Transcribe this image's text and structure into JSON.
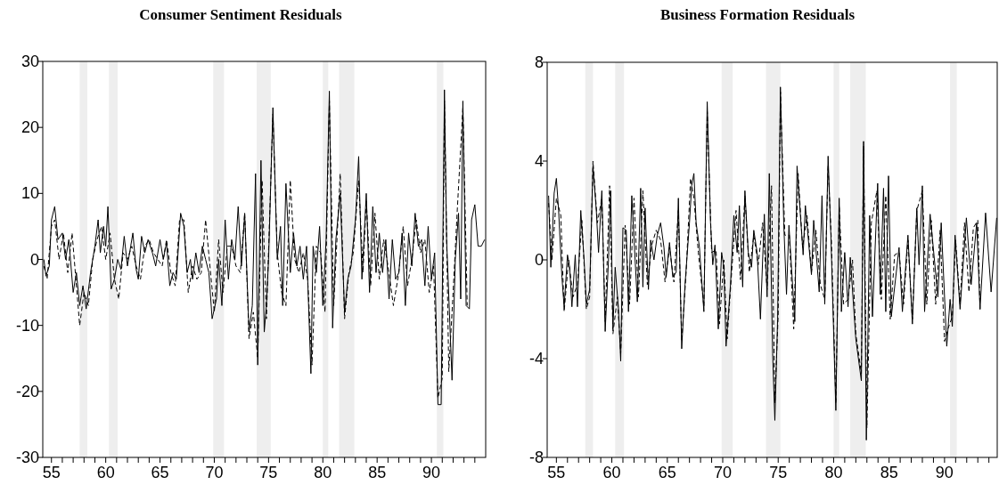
{
  "chart_data": [
    {
      "type": "line",
      "title": "Consumer Sentiment Residuals",
      "xlim": [
        54.2,
        95.0
      ],
      "xticks": [
        55,
        {
          "value": 56,
          "label": null
        },
        {
          "value": 57,
          "label": null
        },
        {
          "value": 58,
          "label": null
        },
        {
          "value": 59,
          "label": null
        },
        60,
        {
          "value": 61,
          "label": null
        },
        {
          "value": 62,
          "label": null
        },
        {
          "value": 63,
          "label": null
        },
        {
          "value": 64,
          "label": null
        },
        65,
        {
          "value": 66,
          "label": null
        },
        {
          "value": 67,
          "label": null
        },
        {
          "value": 68,
          "label": null
        },
        {
          "value": 69,
          "label": null
        },
        70,
        {
          "value": 71,
          "label": null
        },
        {
          "value": 72,
          "label": null
        },
        {
          "value": 73,
          "label": null
        },
        {
          "value": 74,
          "label": null
        },
        75,
        {
          "value": 76,
          "label": null
        },
        {
          "value": 77,
          "label": null
        },
        {
          "value": 78,
          "label": null
        },
        {
          "value": 79,
          "label": null
        },
        80,
        {
          "value": 81,
          "label": null
        },
        {
          "value": 82,
          "label": null
        },
        {
          "value": 83,
          "label": null
        },
        {
          "value": 84,
          "label": null
        },
        85,
        {
          "value": 86,
          "label": null
        },
        {
          "value": 87,
          "label": null
        },
        {
          "value": 88,
          "label": null
        },
        {
          "value": 89,
          "label": null
        },
        90,
        {
          "value": 91,
          "label": null
        },
        {
          "value": 92,
          "label": null
        },
        {
          "value": 93,
          "label": null
        },
        {
          "value": 94,
          "label": null
        }
      ],
      "ylim": [
        -30,
        30
      ],
      "yticks": [
        -30,
        -20,
        -10,
        0,
        10,
        20,
        30
      ],
      "grid": false,
      "bands": [
        {
          "axis": "x",
          "from": 57.6,
          "to": 58.3,
          "color": "#eeeeee"
        },
        {
          "axis": "x",
          "from": 60.3,
          "to": 61.1,
          "color": "#eeeeee"
        },
        {
          "axis": "x",
          "from": 69.9,
          "to": 70.9,
          "color": "#eeeeee"
        },
        {
          "axis": "x",
          "from": 73.9,
          "to": 75.2,
          "color": "#eeeeee"
        },
        {
          "axis": "x",
          "from": 80.0,
          "to": 80.5,
          "color": "#eeeeee"
        },
        {
          "axis": "x",
          "from": 81.5,
          "to": 82.9,
          "color": "#eeeeee"
        },
        {
          "axis": "x",
          "from": 90.5,
          "to": 91.1,
          "color": "#eeeeee"
        }
      ],
      "series": [
        {
          "color": "#000000",
          "line_style": "solid",
          "x": [
            54.3,
            54.5,
            54.8,
            55.0,
            55.3,
            55.6,
            56.0,
            56.3,
            56.6,
            57.0,
            57.3,
            57.6,
            57.9,
            58.2,
            58.6,
            59.0,
            59.3,
            59.5,
            59.8,
            60.0,
            60.2,
            60.5,
            60.8,
            61.1,
            61.4,
            61.7,
            62.0,
            62.3,
            62.5,
            62.8,
            63.0,
            63.3,
            63.6,
            63.9,
            64.3,
            64.6,
            65.0,
            65.3,
            65.6,
            65.9,
            66.2,
            66.5,
            66.9,
            67.2,
            67.5,
            67.8,
            68.0,
            68.3,
            68.6,
            68.9,
            69.2,
            69.5,
            69.8,
            70.2,
            70.4,
            70.7,
            71.0,
            71.3,
            71.6,
            71.9,
            72.2,
            72.5,
            72.8,
            73.2,
            73.5,
            73.8,
            74.0,
            74.3,
            74.6,
            74.8,
            75.0,
            75.4,
            75.8,
            76.1,
            76.3,
            76.6,
            77.0,
            77.3,
            77.6,
            77.9,
            78.2,
            78.5,
            78.9,
            79.1,
            79.4,
            79.7,
            80.0,
            80.3,
            80.6,
            80.9,
            81.2,
            81.6,
            82.0,
            82.3,
            82.6,
            83.0,
            83.3,
            83.6,
            84.0,
            84.3,
            84.6,
            84.9,
            85.2,
            85.5,
            85.8,
            86.1,
            86.4,
            86.7,
            87.0,
            87.3,
            87.6,
            87.9,
            88.2,
            88.5,
            88.8,
            89.1,
            89.4,
            89.7,
            90.0,
            90.3,
            90.6,
            90.9,
            91.2,
            91.4,
            91.9,
            92.2,
            92.5,
            92.7,
            92.9,
            93.2,
            93.5,
            93.7,
            94.0,
            94.3,
            94.6,
            94.9
          ],
          "values": [
            0,
            -2.5,
            -1,
            6,
            8,
            3,
            4,
            0,
            3,
            -5,
            -2,
            -7,
            -4,
            -7.5,
            -2,
            2,
            6,
            1,
            5,
            2,
            8,
            -4.5,
            -3,
            0,
            -1.5,
            3.5,
            -1,
            2,
            4,
            -1.5,
            -3,
            3.5,
            1,
            3,
            1,
            -1,
            3,
            0,
            2.5,
            -4,
            -2,
            -3,
            7,
            5,
            -2,
            0,
            -3,
            1,
            -2,
            2,
            0,
            -2,
            -9,
            -6,
            0,
            -7,
            6,
            -3,
            3,
            0,
            8,
            -1,
            7,
            -11,
            -7,
            13,
            -16,
            15,
            -11,
            -7,
            0,
            23,
            0,
            5,
            -7,
            11.5,
            -2,
            4,
            -1,
            2,
            -3,
            2,
            -17.3,
            2,
            -2,
            5,
            -7,
            3,
            25.5,
            -10.4,
            3,
            10,
            -8,
            -3,
            -1,
            6,
            15.6,
            -3,
            10,
            -5,
            8,
            -2,
            4,
            -2,
            3,
            -6,
            3,
            -3,
            -2,
            4,
            -7,
            4,
            -1,
            7,
            2,
            3,
            -4,
            5,
            -3,
            1,
            -22,
            -22,
            25.7,
            3,
            -18.3,
            0,
            7,
            -6,
            24,
            -7,
            -7.5,
            6,
            8.3,
            2,
            2,
            3
          ]
        },
        {
          "color": "#000000",
          "line_style": "dashed",
          "x": [
            54.3,
            54.6,
            55.0,
            55.3,
            55.7,
            56.1,
            56.5,
            56.9,
            57.3,
            57.6,
            58.0,
            58.4,
            58.8,
            59.2,
            59.6,
            60.0,
            60.4,
            60.8,
            61.2,
            61.6,
            62.0,
            62.4,
            62.8,
            63.2,
            63.6,
            64.0,
            64.4,
            64.8,
            65.2,
            65.6,
            66.0,
            66.4,
            66.8,
            67.2,
            67.6,
            68.0,
            68.4,
            68.8,
            69.2,
            69.6,
            70.0,
            70.4,
            70.8,
            71.2,
            71.6,
            72.0,
            72.4,
            72.8,
            73.2,
            73.6,
            74.0,
            74.4,
            74.8,
            75.4,
            75.8,
            76.2,
            76.6,
            77.0,
            77.4,
            77.8,
            78.2,
            78.6,
            79.0,
            79.4,
            79.8,
            80.2,
            80.6,
            81.0,
            81.6,
            82.0,
            82.4,
            82.8,
            83.3,
            83.7,
            84.0,
            84.4,
            84.8,
            85.2,
            85.6,
            86.0,
            86.5,
            87.0,
            87.4,
            87.8,
            88.2,
            88.6,
            89.0,
            89.4,
            89.8,
            90.2,
            90.6,
            91.0,
            91.2,
            91.6,
            92.0,
            92.4,
            92.9,
            93.3
          ],
          "values": [
            -1,
            -3,
            5,
            6,
            0,
            4,
            -2,
            4,
            -4,
            -10,
            -5,
            -7,
            0,
            3,
            5,
            0,
            4,
            -3,
            -6,
            1,
            0,
            2,
            -1,
            -3,
            2,
            3,
            1,
            0,
            -1,
            3,
            -2,
            -4,
            6,
            6,
            -5,
            -1,
            -3,
            -2,
            6,
            -1,
            -8,
            3,
            -5,
            2,
            2,
            -1,
            -2,
            7,
            -12,
            -8,
            -15,
            12,
            -9,
            22,
            1,
            -5,
            -7,
            12,
            0,
            -2,
            1,
            -3,
            -16,
            2,
            1,
            -8,
            24,
            -7,
            13,
            -9,
            -2,
            1,
            12,
            -2,
            9,
            -4,
            7,
            -3,
            3,
            -1,
            -7,
            -2,
            5,
            -4,
            0,
            6,
            1,
            3,
            -5,
            -1,
            -21,
            -18,
            24,
            -17,
            -5,
            8,
            23,
            -7
          ]
        }
      ]
    },
    {
      "type": "line",
      "title": "Business Formation Residuals",
      "xlim": [
        54.17,
        94.75
      ],
      "xticks": [
        55,
        {
          "value": 56,
          "label": null
        },
        {
          "value": 57,
          "label": null
        },
        {
          "value": 58,
          "label": null
        },
        {
          "value": 59,
          "label": null
        },
        60,
        {
          "value": 61,
          "label": null
        },
        {
          "value": 62,
          "label": null
        },
        {
          "value": 63,
          "label": null
        },
        {
          "value": 64,
          "label": null
        },
        65,
        {
          "value": 66,
          "label": null
        },
        {
          "value": 67,
          "label": null
        },
        {
          "value": 68,
          "label": null
        },
        {
          "value": 69,
          "label": null
        },
        70,
        {
          "value": 71,
          "label": null
        },
        {
          "value": 72,
          "label": null
        },
        {
          "value": 73,
          "label": null
        },
        {
          "value": 74,
          "label": null
        },
        75,
        {
          "value": 76,
          "label": null
        },
        {
          "value": 77,
          "label": null
        },
        {
          "value": 78,
          "label": null
        },
        {
          "value": 79,
          "label": null
        },
        80,
        {
          "value": 81,
          "label": null
        },
        {
          "value": 82,
          "label": null
        },
        {
          "value": 83,
          "label": null
        },
        {
          "value": 84,
          "label": null
        },
        85,
        {
          "value": 86,
          "label": null
        },
        {
          "value": 87,
          "label": null
        },
        {
          "value": 88,
          "label": null
        },
        {
          "value": 89,
          "label": null
        },
        90,
        {
          "value": 91,
          "label": null
        },
        {
          "value": 92,
          "label": null
        },
        {
          "value": 93,
          "label": null
        },
        {
          "value": 94,
          "label": null
        }
      ],
      "ylim": [
        -8,
        8
      ],
      "yticks": [
        -8,
        -4,
        0,
        4,
        8
      ],
      "grid": false,
      "bands": [
        {
          "axis": "x",
          "from": 57.6,
          "to": 58.3,
          "color": "#eeeeee"
        },
        {
          "axis": "x",
          "from": 60.3,
          "to": 61.1,
          "color": "#eeeeee"
        },
        {
          "axis": "x",
          "from": 69.9,
          "to": 70.9,
          "color": "#eeeeee"
        },
        {
          "axis": "x",
          "from": 73.9,
          "to": 75.2,
          "color": "#eeeeee"
        },
        {
          "axis": "x",
          "from": 80.0,
          "to": 80.5,
          "color": "#eeeeee"
        },
        {
          "axis": "x",
          "from": 81.5,
          "to": 82.9,
          "color": "#eeeeee"
        },
        {
          "axis": "x",
          "from": 90.5,
          "to": 91.1,
          "color": "#eeeeee"
        }
      ],
      "series": [
        {
          "color": "#000000",
          "line_style": "solid",
          "x": [
            54.3,
            54.5,
            54.8,
            55.0,
            55.2,
            55.5,
            55.7,
            56.0,
            56.2,
            56.4,
            56.7,
            56.9,
            57.2,
            57.5,
            57.7,
            58.0,
            58.3,
            58.6,
            58.8,
            59.1,
            59.4,
            59.7,
            59.9,
            60.1,
            60.3,
            60.6,
            60.8,
            61.0,
            61.3,
            61.5,
            61.8,
            62.1,
            62.3,
            62.6,
            62.8,
            63.0,
            63.3,
            63.5,
            63.8,
            64.1,
            64.4,
            64.7,
            64.9,
            65.2,
            65.5,
            65.8,
            66.0,
            66.3,
            66.6,
            67.0,
            67.2,
            67.4,
            67.6,
            67.9,
            68.3,
            68.6,
            68.9,
            69.1,
            69.3,
            69.6,
            69.9,
            70.1,
            70.3,
            70.7,
            71.0,
            71.3,
            71.5,
            71.8,
            72.0,
            72.3,
            72.6,
            72.8,
            73.1,
            73.4,
            73.75,
            74.0,
            74.2,
            74.5,
            74.7,
            74.95,
            75.2,
            75.5,
            75.75,
            75.97,
            76.5,
            76.7,
            77.25,
            77.45,
            78.0,
            78.2,
            78.7,
            78.95,
            79.2,
            79.5,
            79.75,
            80.2,
            80.5,
            80.7,
            81.0,
            81.3,
            81.5,
            82.0,
            82.5,
            82.7,
            82.95,
            83.25,
            83.5,
            83.97,
            84.2,
            84.5,
            84.7,
            84.95,
            85.2,
            85.9,
            86.2,
            86.7,
            87.1,
            87.5,
            87.7,
            88.0,
            88.2,
            88.7,
            89.4,
            89.7,
            90.2,
            90.5,
            90.7,
            90.95,
            91.4,
            91.97,
            92.4,
            92.9,
            93.2,
            93.7,
            94.2,
            94.7
          ],
          "values": [
            2.6,
            -0.3,
            2.7,
            3.3,
            2,
            -0.7,
            -1.9,
            0.2,
            -0.3,
            -1.9,
            0.2,
            -1.9,
            2,
            0,
            -1.8,
            -1.2,
            3.8,
            2,
            0.3,
            2.8,
            -2.9,
            0,
            2.8,
            -2.8,
            -0.3,
            -2,
            -4.1,
            1.3,
            1.2,
            -2.1,
            2.6,
            0,
            -1.7,
            2.9,
            -1.1,
            2.1,
            -1.2,
            0.8,
            0,
            1,
            1.5,
            0.5,
            -0.7,
            0.7,
            -0.7,
            -0.5,
            2.5,
            -3.6,
            -1,
            1.5,
            3,
            3.5,
            1.5,
            0.5,
            -2.1,
            6.4,
            1.5,
            -0.2,
            0.6,
            -2.8,
            0.3,
            -0.3,
            -3.5,
            -1,
            1.8,
            0.3,
            2.2,
            -1.1,
            2.8,
            0.3,
            -0.3,
            1.2,
            0.3,
            -2.4,
            1.85,
            -1.5,
            3.5,
            -3.8,
            -6.5,
            -2.4,
            7,
            1.5,
            -1.4,
            1.4,
            -2.5,
            3.8,
            0.2,
            2.2,
            -0.6,
            1.6,
            -1.3,
            2.6,
            -1.8,
            4.2,
            1,
            -6.1,
            2.5,
            -2.1,
            0.3,
            -1.9,
            0.1,
            -3.2,
            -4.9,
            4.8,
            -7.3,
            1.8,
            -2.3,
            3.1,
            -1.4,
            2.9,
            -2.1,
            3.4,
            -2.3,
            0.5,
            -2.1,
            1,
            -2.6,
            2.1,
            -0.2,
            3,
            -2.1,
            1.85,
            -1.5,
            1.5,
            -3.5,
            -1.6,
            -2.7,
            1,
            -2,
            1.7,
            -1,
            1.5,
            -2,
            1.9,
            -1.3,
            1.7
          ]
        },
        {
          "color": "#000000",
          "line_style": "dashed",
          "x": [
            54.3,
            54.6,
            55.0,
            55.4,
            55.7,
            56.1,
            56.5,
            56.9,
            57.3,
            57.7,
            58.0,
            58.3,
            58.7,
            59.1,
            59.4,
            59.8,
            60.1,
            60.5,
            60.8,
            61.2,
            61.6,
            62.0,
            62.4,
            62.8,
            63.2,
            63.6,
            64.0,
            64.4,
            64.8,
            65.2,
            65.6,
            66.0,
            66.3,
            66.7,
            67.1,
            67.4,
            67.8,
            68.3,
            68.6,
            69.0,
            69.4,
            69.7,
            70.1,
            70.4,
            70.8,
            71.2,
            71.6,
            72.0,
            72.4,
            72.8,
            73.2,
            73.6,
            74.0,
            74.4,
            74.7,
            75.0,
            75.2,
            75.6,
            76.0,
            76.4,
            76.8,
            77.2,
            77.6,
            78.0,
            78.4,
            78.8,
            79.2,
            79.5,
            79.8,
            80.2,
            80.5,
            80.9,
            81.3,
            81.7,
            82.0,
            82.5,
            82.7,
            83.0,
            83.4,
            83.9,
            84.3,
            84.7,
            85.1,
            85.5,
            85.9,
            86.3,
            86.7,
            87.1,
            87.5,
            88.0,
            88.4,
            88.8,
            89.2,
            89.6,
            90.0,
            90.3,
            90.7,
            91.0,
            91.4,
            91.8,
            92.2,
            92.6,
            93.0,
            93.2
          ],
          "values": [
            2.3,
            0,
            2.5,
            1.8,
            -2.1,
            0,
            -1.5,
            -1,
            1.6,
            -2,
            -1.5,
            4,
            1.5,
            2.5,
            -2.5,
            3,
            -3,
            -1.5,
            -3.8,
            1.4,
            -1.8,
            2.5,
            -1.5,
            2.8,
            -1,
            0.6,
            1.2,
            0.8,
            -0.9,
            0.5,
            -0.9,
            2,
            -3.3,
            -0.5,
            3.3,
            2.5,
            0.3,
            -1.9,
            6,
            0.3,
            0.4,
            -2.6,
            0,
            -3.2,
            -0.5,
            2,
            -0.8,
            2.6,
            -0.5,
            1,
            -0.2,
            1.5,
            -1.2,
            3,
            -5.8,
            -2.2,
            6.8,
            1,
            1,
            -2.8,
            3.5,
            0.5,
            1.8,
            -0.5,
            1.2,
            -1,
            -1.6,
            3.8,
            0.8,
            -5.8,
            2.2,
            -1.8,
            -1.6,
            0,
            -3,
            -4.6,
            4.6,
            -6.8,
            1.5,
            2.8,
            -1.6,
            2.6,
            -2.4,
            0.2,
            0.3,
            -1.8,
            0.8,
            -2.4,
            2,
            2.8,
            -1.8,
            1.6,
            -1.8,
            1.2,
            -3.3,
            -2.8,
            -2.3,
            0.8,
            -1.8,
            1.5,
            -1.3,
            1.3,
            1.6,
            -2
          ]
        }
      ]
    }
  ]
}
